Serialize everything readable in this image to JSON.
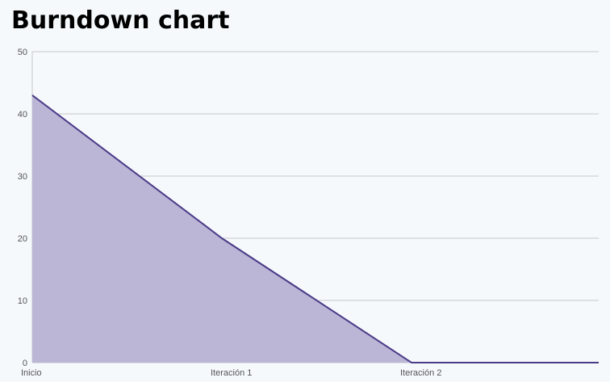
{
  "chart_data": {
    "type": "area",
    "title": "Burndown chart",
    "categories": [
      "Inicio",
      "Iteración 1",
      "Iteración 2",
      ""
    ],
    "series": [
      {
        "values": [
          43,
          20,
          0,
          0
        ],
        "color": "#4a3a87",
        "fill": "#bbb5d6"
      }
    ],
    "ylim": [
      0,
      50
    ],
    "yticks": [
      0,
      10,
      20,
      30,
      40,
      50
    ],
    "grid": true,
    "legend": "none"
  },
  "colors": {
    "background": "#f5f9fc",
    "grid": "#c8c8c8",
    "line": "#4a3a87",
    "area": "#bbb5d6"
  }
}
